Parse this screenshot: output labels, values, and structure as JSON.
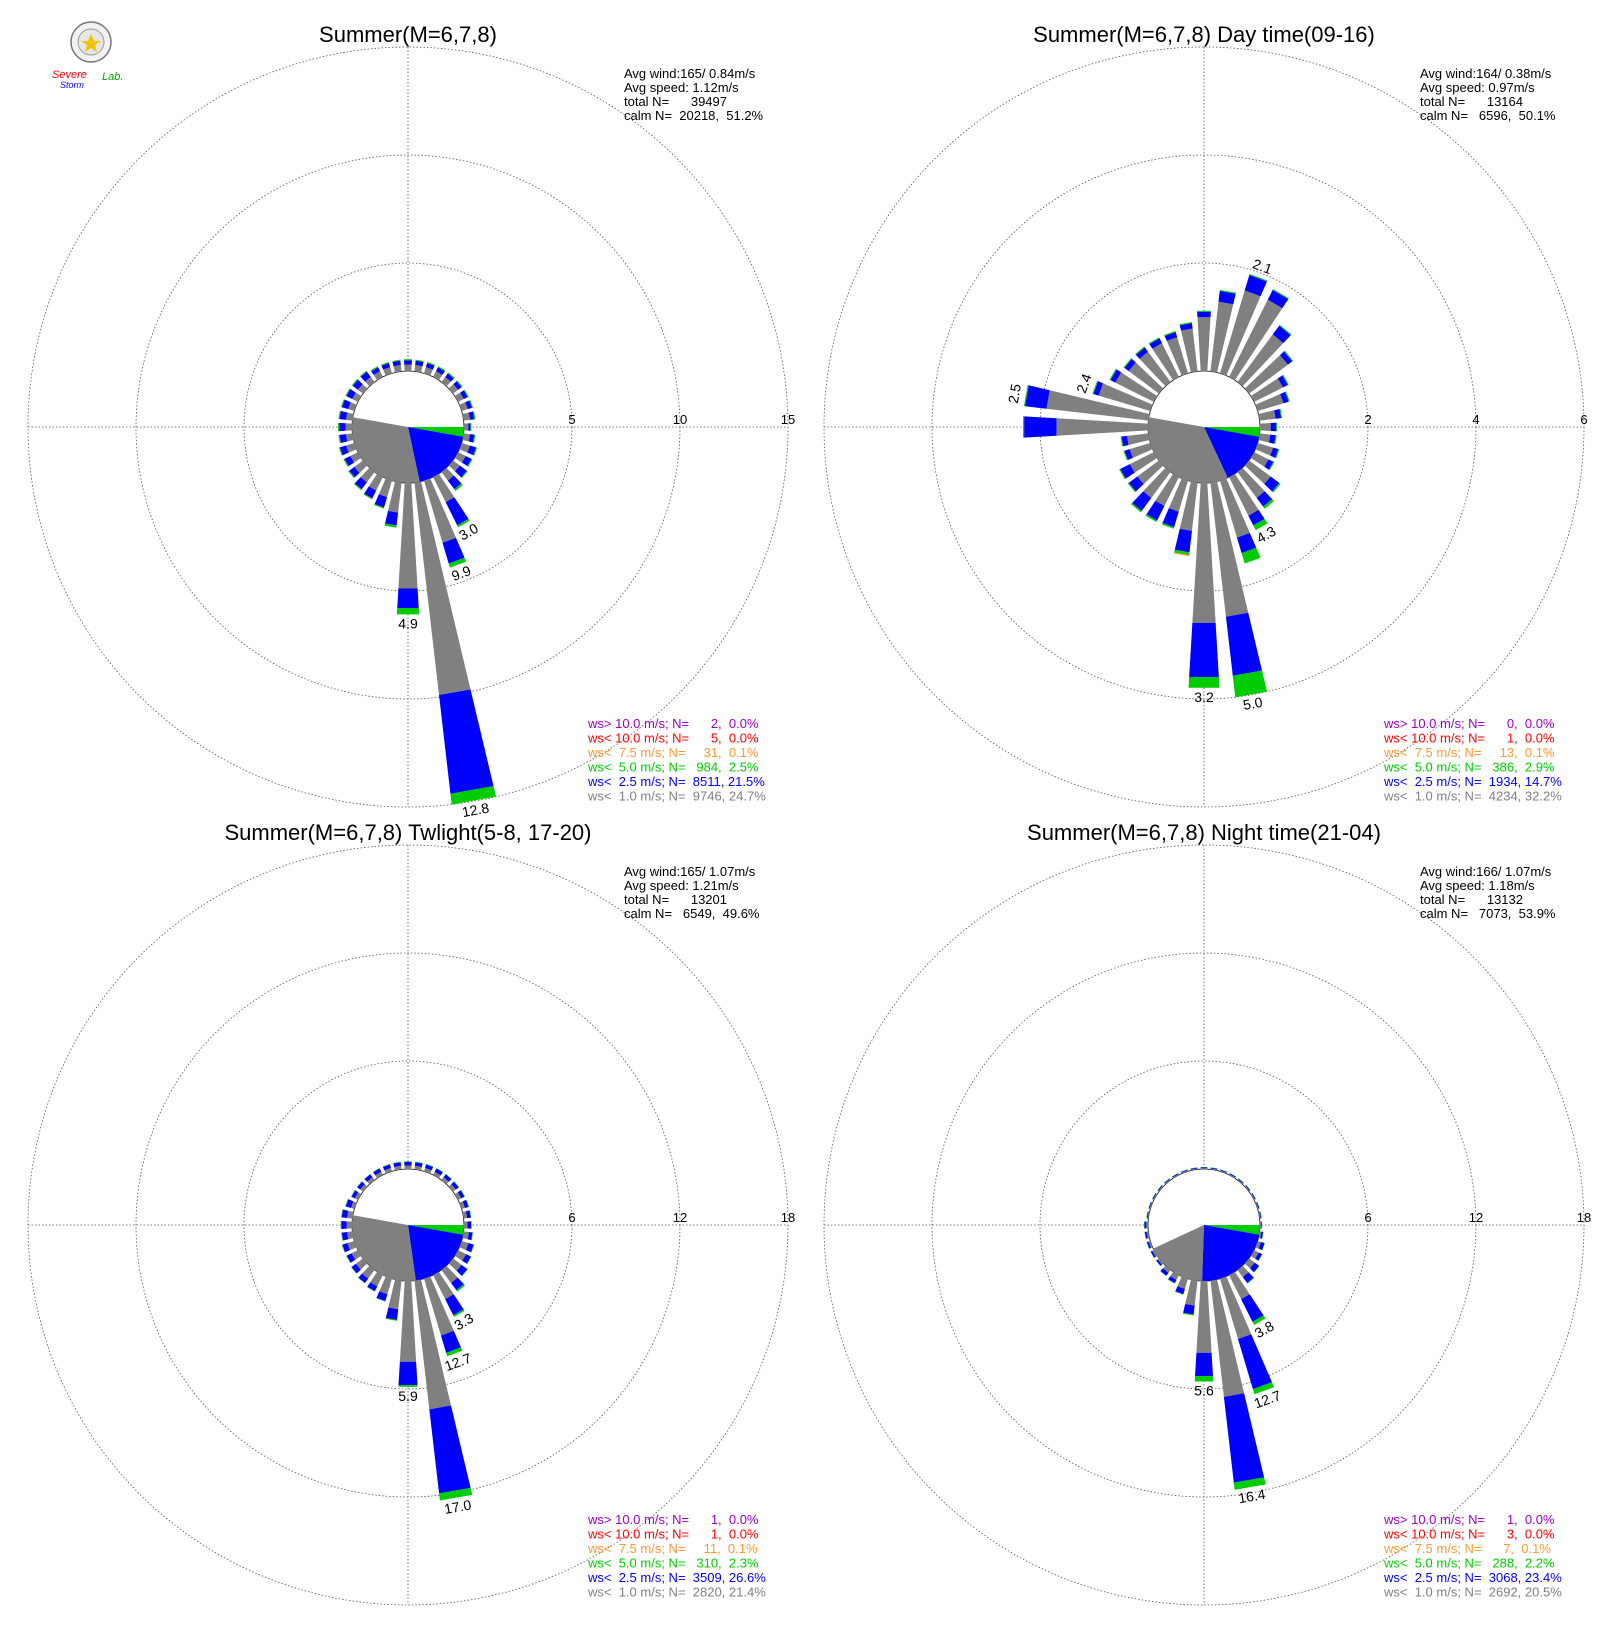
{
  "colors": {
    "ws_gt_10": "#9900cc",
    "ws_lt_10": "#ff0000",
    "ws_lt_7_5": "#ff9933",
    "ws_lt_5": "#00cc00",
    "ws_lt_2_5": "#0000ff",
    "ws_lt_1": "#808080",
    "grid": "#555555"
  },
  "logo": {
    "line1": "Severe",
    "line2": "Storm",
    "line3": "Lab."
  },
  "chart_data": [
    {
      "type": "windrose",
      "title": "Summer(M=6,7,8)",
      "rings": [
        5,
        10,
        15
      ],
      "ring_labels": [
        "5",
        "10",
        "15"
      ],
      "info": [
        "Avg wind:165/ 0.84m/s",
        "Avg speed: 1.12m/s",
        "total N=      39497",
        "calm N=  20218,  51.2%"
      ],
      "legend": [
        {
          "text": "ws> 10.0 m/s; N=      2,  0.0%",
          "color_key": "ws_gt_10"
        },
        {
          "text": "ws< 10.0 m/s; N=      5,  0.0%",
          "color_key": "ws_lt_10"
        },
        {
          "text": "ws<  7.5 m/s; N=     31,  0.1%",
          "color_key": "ws_lt_7_5"
        },
        {
          "text": "ws<  5.0 m/s; N=   984,  2.5%",
          "color_key": "ws_lt_5"
        },
        {
          "text": "ws<  2.5 m/s; N=  8511, 21.5%",
          "color_key": "ws_lt_2_5"
        },
        {
          "text": "ws<  1.0 m/s; N=  9746, 24.7%",
          "color_key": "ws_lt_1"
        }
      ],
      "calm_pct": 51.2,
      "calm_wedges": [
        {
          "from_deg": 90,
          "to_deg": 100,
          "color_key": "ws_lt_5"
        },
        {
          "from_deg": 100,
          "to_deg": 168,
          "color_key": "ws_lt_2_5"
        },
        {
          "from_deg": 168,
          "to_deg": 280,
          "color_key": "ws_lt_1"
        }
      ],
      "dir_deg": [
        0,
        10,
        20,
        30,
        40,
        50,
        60,
        70,
        80,
        90,
        100,
        110,
        120,
        130,
        140,
        150,
        160,
        170,
        180,
        190,
        200,
        210,
        220,
        230,
        240,
        250,
        260,
        270,
        280,
        290,
        300,
        310,
        320,
        330,
        340,
        350
      ],
      "bins": [
        [
          0.3,
          0.3,
          0.3,
          0.3,
          0.3,
          0.3,
          0.3,
          0.3,
          0.3,
          0.2,
          0.3,
          0.4,
          0.4,
          0.4,
          0.5,
          1.3,
          3.0,
          9.9,
          4.9,
          1.4,
          0.8,
          0.7,
          0.6,
          0.5,
          0.4,
          0.4,
          0.3,
          0.3,
          0.3,
          0.3,
          0.3,
          0.3,
          0.3,
          0.3,
          0.3,
          0.3
        ],
        [
          0.2,
          0.2,
          0.2,
          0.2,
          0.2,
          0.2,
          0.2,
          0.2,
          0.2,
          0.1,
          0.2,
          0.3,
          0.3,
          0.4,
          0.5,
          1.2,
          1.0,
          4.6,
          0.9,
          0.6,
          0.5,
          0.4,
          0.4,
          0.3,
          0.3,
          0.3,
          0.3,
          0.3,
          0.3,
          0.3,
          0.3,
          0.3,
          0.3,
          0.2,
          0.2,
          0.2
        ],
        [
          0.05,
          0.05,
          0.05,
          0.05,
          0.05,
          0.05,
          0.05,
          0.05,
          0.05,
          0.05,
          0.05,
          0.05,
          0.05,
          0.05,
          0.1,
          0.1,
          0.2,
          0.5,
          0.3,
          0.1,
          0.05,
          0.05,
          0.05,
          0.05,
          0.05,
          0.05,
          0.05,
          0.05,
          0.05,
          0.05,
          0.05,
          0.05,
          0.05,
          0.05,
          0.05,
          0.05
        ],
        [
          0,
          0,
          0,
          0,
          0,
          0,
          0,
          0,
          0,
          0,
          0,
          0,
          0,
          0,
          0,
          0,
          0,
          0,
          0,
          0,
          0,
          0,
          0,
          0,
          0,
          0,
          0,
          0,
          0,
          0,
          0,
          0,
          0,
          0,
          0,
          0
        ]
      ],
      "labels": [
        {
          "deg": 150,
          "text": "3.0"
        },
        {
          "deg": 160,
          "text": "9.9"
        },
        {
          "deg": 170,
          "text": "12.8"
        },
        {
          "deg": 180,
          "text": "4.9"
        }
      ],
      "max_ring": 15
    },
    {
      "type": "windrose",
      "title": "Summer(M=6,7,8) Day time(09-16)",
      "rings": [
        2,
        4,
        6
      ],
      "ring_labels": [
        "2",
        "4",
        "6"
      ],
      "info": [
        "Avg wind:164/ 0.38m/s",
        "Avg speed: 0.97m/s",
        "total N=      13164",
        "calm N=   6596,  50.1%"
      ],
      "legend": [
        {
          "text": "ws> 10.0 m/s; N=      0,  0.0%",
          "color_key": "ws_gt_10"
        },
        {
          "text": "ws< 10.0 m/s; N=      1,  0.0%",
          "color_key": "ws_lt_10"
        },
        {
          "text": "ws<  7.5 m/s; N=     13,  0.1%",
          "color_key": "ws_lt_7_5"
        },
        {
          "text": "ws<  5.0 m/s; N=   386,  2.9%",
          "color_key": "ws_lt_5"
        },
        {
          "text": "ws<  2.5 m/s; N=  1934, 14.7%",
          "color_key": "ws_lt_2_5"
        },
        {
          "text": "ws<  1.0 m/s; N=  4234, 32.2%",
          "color_key": "ws_lt_1"
        }
      ],
      "calm_pct": 50.1,
      "calm_wedges": [
        {
          "from_deg": 90,
          "to_deg": 100,
          "color_key": "ws_lt_5"
        },
        {
          "from_deg": 100,
          "to_deg": 155,
          "color_key": "ws_lt_2_5"
        },
        {
          "from_deg": 155,
          "to_deg": 280,
          "color_key": "ws_lt_1"
        }
      ],
      "dir_deg": [
        0,
        10,
        20,
        30,
        40,
        50,
        60,
        70,
        80,
        90,
        100,
        110,
        120,
        130,
        140,
        150,
        160,
        170,
        180,
        190,
        200,
        210,
        220,
        230,
        240,
        250,
        260,
        270,
        280,
        290,
        300,
        310,
        320,
        330,
        340,
        350
      ],
      "bins": [
        [
          1.0,
          1.3,
          1.6,
          1.6,
          1.1,
          0.9,
          0.6,
          0.5,
          0.3,
          0.2,
          0.2,
          0.3,
          0.3,
          0.5,
          0.6,
          0.8,
          1.1,
          2.5,
          2.6,
          0.9,
          0.6,
          0.6,
          0.6,
          0.5,
          0.5,
          0.4,
          0.4,
          1.7,
          1.9,
          1.0,
          0.8,
          0.7,
          0.7,
          0.7,
          0.7,
          0.8
        ],
        [
          0.1,
          0.2,
          0.3,
          0.2,
          0.2,
          0.1,
          0.1,
          0.1,
          0.1,
          0.1,
          0.1,
          0.1,
          0.1,
          0.2,
          0.2,
          0.2,
          0.3,
          1.1,
          1.0,
          0.4,
          0.3,
          0.3,
          0.3,
          0.2,
          0.2,
          0.1,
          0.1,
          0.6,
          0.4,
          0.1,
          0.1,
          0.1,
          0.1,
          0.1,
          0.1,
          0.1
        ],
        [
          0.02,
          0.02,
          0.02,
          0.02,
          0.02,
          0.02,
          0.02,
          0.02,
          0.02,
          0.02,
          0.02,
          0.02,
          0.02,
          0.03,
          0.05,
          0.1,
          0.2,
          0.4,
          0.2,
          0.05,
          0.03,
          0.03,
          0.03,
          0.02,
          0.02,
          0.02,
          0.02,
          0.02,
          0.02,
          0.02,
          0.02,
          0.02,
          0.02,
          0.02,
          0.02,
          0.02
        ],
        [
          0,
          0,
          0,
          0,
          0,
          0,
          0,
          0,
          0,
          0,
          0,
          0,
          0,
          0,
          0,
          0,
          0,
          0,
          0,
          0.02,
          0,
          0,
          0,
          0,
          0,
          0,
          0,
          0,
          0,
          0,
          0,
          0,
          0,
          0,
          0,
          0
        ]
      ],
      "labels": [
        {
          "deg": 20,
          "text": "2.1"
        },
        {
          "deg": 150,
          "text": "4.3"
        },
        {
          "deg": 170,
          "text": "5.0"
        },
        {
          "deg": 180,
          "text": "3.2"
        },
        {
          "deg": 290,
          "text": "2.4"
        },
        {
          "deg": 280,
          "text": "2.5"
        }
      ],
      "max_ring": 6
    },
    {
      "type": "windrose",
      "title": "Summer(M=6,7,8) Twlight(5-8, 17-20)",
      "rings": [
        6,
        12,
        18
      ],
      "ring_labels": [
        "6",
        "12",
        "18"
      ],
      "info": [
        "Avg wind:165/ 1.07m/s",
        "Avg speed: 1.21m/s",
        "total N=      13201",
        "calm N=   6549,  49.6%"
      ],
      "legend": [
        {
          "text": "ws> 10.0 m/s; N=      1,  0.0%",
          "color_key": "ws_gt_10"
        },
        {
          "text": "ws< 10.0 m/s; N=      1,  0.0%",
          "color_key": "ws_lt_10"
        },
        {
          "text": "ws<  7.5 m/s; N=     11,  0.1%",
          "color_key": "ws_lt_7_5"
        },
        {
          "text": "ws<  5.0 m/s; N=   310,  2.3%",
          "color_key": "ws_lt_5"
        },
        {
          "text": "ws<  2.5 m/s; N=  3509, 26.6%",
          "color_key": "ws_lt_2_5"
        },
        {
          "text": "ws<  1.0 m/s; N=  2820, 21.4%",
          "color_key": "ws_lt_1"
        }
      ],
      "calm_pct": 49.6,
      "calm_wedges": [
        {
          "from_deg": 90,
          "to_deg": 100,
          "color_key": "ws_lt_5"
        },
        {
          "from_deg": 100,
          "to_deg": 172,
          "color_key": "ws_lt_2_5"
        },
        {
          "from_deg": 172,
          "to_deg": 280,
          "color_key": "ws_lt_1"
        }
      ],
      "dir_deg": [
        0,
        10,
        20,
        30,
        40,
        50,
        60,
        70,
        80,
        90,
        100,
        110,
        120,
        130,
        140,
        150,
        160,
        170,
        180,
        190,
        200,
        210,
        220,
        230,
        240,
        250,
        260,
        270,
        280,
        290,
        300,
        310,
        320,
        330,
        340,
        350
      ],
      "bins": [
        [
          0.2,
          0.2,
          0.2,
          0.2,
          0.2,
          0.2,
          0.2,
          0.2,
          0.2,
          0.2,
          0.3,
          0.4,
          0.5,
          0.6,
          0.9,
          1.5,
          3.3,
          7.2,
          4.5,
          1.6,
          0.9,
          0.7,
          0.6,
          0.5,
          0.4,
          0.4,
          0.3,
          0.3,
          0.3,
          0.2,
          0.2,
          0.2,
          0.2,
          0.2,
          0.2,
          0.2
        ],
        [
          0.2,
          0.2,
          0.2,
          0.2,
          0.2,
          0.2,
          0.2,
          0.2,
          0.2,
          0.2,
          0.2,
          0.3,
          0.3,
          0.4,
          0.5,
          1.0,
          1.0,
          4.7,
          1.3,
          0.6,
          0.4,
          0.3,
          0.3,
          0.3,
          0.3,
          0.3,
          0.3,
          0.3,
          0.3,
          0.3,
          0.2,
          0.2,
          0.2,
          0.2,
          0.2,
          0.2
        ],
        [
          0.03,
          0.03,
          0.03,
          0.03,
          0.03,
          0.03,
          0.03,
          0.03,
          0.03,
          0.03,
          0.03,
          0.03,
          0.03,
          0.03,
          0.1,
          0.1,
          0.2,
          0.4,
          0.1,
          0.05,
          0.03,
          0.03,
          0.03,
          0.03,
          0.03,
          0.03,
          0.03,
          0.03,
          0.03,
          0.03,
          0.03,
          0.03,
          0.03,
          0.03,
          0.03,
          0.03
        ],
        [
          0,
          0,
          0,
          0,
          0,
          0,
          0,
          0,
          0,
          0,
          0,
          0,
          0,
          0,
          0,
          0,
          0,
          0,
          0,
          0,
          0,
          0,
          0,
          0,
          0,
          0,
          0,
          0,
          0,
          0,
          0,
          0,
          0,
          0,
          0,
          0
        ]
      ],
      "labels": [
        {
          "deg": 150,
          "text": "3.3"
        },
        {
          "deg": 160,
          "text": "12.7"
        },
        {
          "deg": 170,
          "text": "17.0"
        },
        {
          "deg": 180,
          "text": "5.9"
        }
      ],
      "max_ring": 18
    },
    {
      "type": "windrose",
      "title": "Summer(M=6,7,8) Night time(21-04)",
      "rings": [
        6,
        12,
        18
      ],
      "ring_labels": [
        "6",
        "12",
        "18"
      ],
      "info": [
        "Avg wind:166/ 1.07m/s",
        "Avg speed: 1.18m/s",
        "total N=      13132",
        "calm N=   7073,  53.9%"
      ],
      "legend": [
        {
          "text": "ws> 10.0 m/s; N=      1,  0.0%",
          "color_key": "ws_gt_10"
        },
        {
          "text": "ws< 10.0 m/s; N=      3,  0.0%",
          "color_key": "ws_lt_10"
        },
        {
          "text": "ws<  7.5 m/s; N=      7,  0.1%",
          "color_key": "ws_lt_7_5"
        },
        {
          "text": "ws<  5.0 m/s; N=   288,  2.2%",
          "color_key": "ws_lt_5"
        },
        {
          "text": "ws<  2.5 m/s; N=  3068, 23.4%",
          "color_key": "ws_lt_2_5"
        },
        {
          "text": "ws<  1.0 m/s; N=  2692, 20.5%",
          "color_key": "ws_lt_1"
        }
      ],
      "calm_pct": 53.9,
      "calm_wedges": [
        {
          "from_deg": 90,
          "to_deg": 100,
          "color_key": "ws_lt_5"
        },
        {
          "from_deg": 100,
          "to_deg": 182,
          "color_key": "ws_lt_2_5"
        },
        {
          "from_deg": 182,
          "to_deg": 245,
          "color_key": "ws_lt_1"
        }
      ],
      "dir_deg": [
        0,
        10,
        20,
        30,
        40,
        50,
        60,
        70,
        80,
        90,
        100,
        110,
        120,
        130,
        140,
        150,
        160,
        170,
        180,
        190,
        200,
        210,
        220,
        230,
        240,
        250,
        260,
        270,
        280,
        290,
        300,
        310,
        320,
        330,
        340,
        350
      ],
      "bins": [
        [
          0.05,
          0.05,
          0.05,
          0.05,
          0.05,
          0.05,
          0.05,
          0.05,
          0.05,
          0.05,
          0.1,
          0.2,
          0.3,
          0.4,
          0.5,
          1.5,
          3.5,
          6.5,
          4.0,
          1.4,
          0.6,
          0.3,
          0.2,
          0.1,
          0.1,
          0.1,
          0.1,
          0.1,
          0.05,
          0.05,
          0.05,
          0.05,
          0.05,
          0.05,
          0.05,
          0.05
        ],
        [
          0.05,
          0.05,
          0.05,
          0.05,
          0.05,
          0.05,
          0.05,
          0.05,
          0.05,
          0.05,
          0.1,
          0.2,
          0.2,
          0.3,
          0.4,
          1.4,
          2.9,
          4.8,
          1.3,
          0.5,
          0.3,
          0.2,
          0.2,
          0.1,
          0.1,
          0.1,
          0.1,
          0.1,
          0.05,
          0.05,
          0.05,
          0.05,
          0.05,
          0.05,
          0.05,
          0.05
        ],
        [
          0.02,
          0.02,
          0.02,
          0.02,
          0.02,
          0.02,
          0.02,
          0.02,
          0.02,
          0.02,
          0.02,
          0.02,
          0.02,
          0.03,
          0.05,
          0.2,
          0.3,
          0.4,
          0.3,
          0.05,
          0.03,
          0.03,
          0.03,
          0.02,
          0.02,
          0.02,
          0.02,
          0.02,
          0.02,
          0.02,
          0.02,
          0.02,
          0.02,
          0.02,
          0.02,
          0.02
        ],
        [
          0,
          0,
          0,
          0,
          0,
          0,
          0,
          0,
          0,
          0,
          0,
          0,
          0,
          0,
          0,
          0,
          0,
          0,
          0,
          0,
          0,
          0,
          0,
          0,
          0,
          0,
          0,
          0,
          0,
          0,
          0,
          0,
          0,
          0,
          0,
          0
        ]
      ],
      "labels": [
        {
          "deg": 150,
          "text": "3.8"
        },
        {
          "deg": 160,
          "text": "12.7"
        },
        {
          "deg": 170,
          "text": "16.4"
        },
        {
          "deg": 180,
          "text": "5.6"
        }
      ],
      "max_ring": 18
    }
  ]
}
